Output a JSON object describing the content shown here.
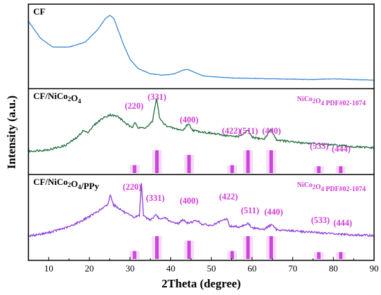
{
  "chart_data": {
    "type": "line",
    "xlabel": "2Theta (degree)",
    "ylabel": "Intensity (a.u.)",
    "xlim": [
      5,
      90
    ],
    "xticks": [
      10,
      20,
      30,
      40,
      50,
      60,
      70,
      80,
      90
    ],
    "colors": {
      "CF": "#3a86d8",
      "CF/NiCo2O4": "#1e6b3a",
      "CF/NiCo2O4/PPy": "#8a3ad8",
      "annotation": "#d23ad8",
      "reference_bar": "#cc44dd",
      "reference_halo": "#f0c2f4"
    },
    "panels": [
      {
        "title": "CF",
        "series_points": [
          [
            5,
            0.86
          ],
          [
            8,
            0.62
          ],
          [
            11,
            0.5
          ],
          [
            15,
            0.5
          ],
          [
            19,
            0.57
          ],
          [
            22,
            0.74
          ],
          [
            24,
            0.9
          ],
          [
            25,
            0.94
          ],
          [
            26,
            0.9
          ],
          [
            27,
            0.75
          ],
          [
            28.5,
            0.52
          ],
          [
            30,
            0.33
          ],
          [
            32,
            0.2
          ],
          [
            35,
            0.13
          ],
          [
            38,
            0.11
          ],
          [
            41,
            0.13
          ],
          [
            43,
            0.18
          ],
          [
            44,
            0.19
          ],
          [
            45.5,
            0.16
          ],
          [
            48,
            0.1
          ],
          [
            55,
            0.07
          ],
          [
            65,
            0.06
          ],
          [
            75,
            0.05
          ],
          [
            80,
            0.06
          ],
          [
            85,
            0.05
          ],
          [
            90,
            0.04
          ]
        ]
      },
      {
        "title": "CF/NiCo2O4",
        "reference": "NiCo2O4 PDF#02-1074",
        "series_points": [
          [
            5,
            0.04
          ],
          [
            10,
            0.07
          ],
          [
            14,
            0.14
          ],
          [
            17,
            0.28
          ],
          [
            18.5,
            0.4
          ],
          [
            19.5,
            0.36
          ],
          [
            21,
            0.48
          ],
          [
            23,
            0.6
          ],
          [
            25,
            0.67
          ],
          [
            27,
            0.64
          ],
          [
            29,
            0.52
          ],
          [
            30.5,
            0.44
          ],
          [
            31.2,
            0.56
          ],
          [
            32,
            0.44
          ],
          [
            34,
            0.45
          ],
          [
            35.5,
            0.55
          ],
          [
            36.5,
            0.96
          ],
          [
            37.3,
            0.6
          ],
          [
            38.5,
            0.5
          ],
          [
            40,
            0.45
          ],
          [
            43,
            0.4
          ],
          [
            44.3,
            0.52
          ],
          [
            45.5,
            0.4
          ],
          [
            50,
            0.35
          ],
          [
            55,
            0.3
          ],
          [
            57,
            0.3
          ],
          [
            59,
            0.4
          ],
          [
            60,
            0.28
          ],
          [
            63,
            0.25
          ],
          [
            64.6,
            0.42
          ],
          [
            66,
            0.24
          ],
          [
            70,
            0.2
          ],
          [
            76,
            0.17
          ],
          [
            80,
            0.15
          ],
          [
            85,
            0.12
          ],
          [
            90,
            0.1
          ]
        ],
        "annotations": [
          {
            "label": "(220)",
            "x": 31
          },
          {
            "label": "(331)",
            "x": 36.6
          },
          {
            "label": "(400)",
            "x": 44.5
          },
          {
            "label": "(422)",
            "x": 54.9
          },
          {
            "label": "(511)",
            "x": 59.2
          },
          {
            "label": "(440)",
            "x": 64.8
          },
          {
            "label": "(533)",
            "x": 76.5
          },
          {
            "label": "(444)",
            "x": 81.9
          }
        ],
        "reference_lines": [
          {
            "x": 31.1,
            "intensity": 0.35
          },
          {
            "x": 36.6,
            "intensity": 1.0
          },
          {
            "x": 44.5,
            "intensity": 0.8
          },
          {
            "x": 55.1,
            "intensity": 0.35
          },
          {
            "x": 59.0,
            "intensity": 1.0
          },
          {
            "x": 64.7,
            "intensity": 1.0
          },
          {
            "x": 76.4,
            "intensity": 0.3
          },
          {
            "x": 81.8,
            "intensity": 0.3
          }
        ]
      },
      {
        "title": "CF/NiCo2O4/PPy",
        "reference": "NiCo2O4 PDF#02-1074",
        "series_points": [
          [
            5,
            0.06
          ],
          [
            10,
            0.12
          ],
          [
            15,
            0.22
          ],
          [
            18,
            0.32
          ],
          [
            21,
            0.44
          ],
          [
            23.5,
            0.55
          ],
          [
            24.5,
            0.6
          ],
          [
            25.2,
            0.78
          ],
          [
            25.9,
            0.6
          ],
          [
            27,
            0.55
          ],
          [
            29,
            0.45
          ],
          [
            31,
            0.38
          ],
          [
            32.3,
            0.42
          ],
          [
            32.8,
            0.98
          ],
          [
            33.3,
            0.4
          ],
          [
            35,
            0.34
          ],
          [
            36.4,
            0.42
          ],
          [
            37.5,
            0.34
          ],
          [
            38.7,
            0.38
          ],
          [
            40,
            0.3
          ],
          [
            42,
            0.28
          ],
          [
            43,
            0.35
          ],
          [
            44,
            0.28
          ],
          [
            46.5,
            0.33
          ],
          [
            47.5,
            0.27
          ],
          [
            50,
            0.24
          ],
          [
            53.8,
            0.36
          ],
          [
            54.5,
            0.23
          ],
          [
            57,
            0.22
          ],
          [
            59,
            0.28
          ],
          [
            60,
            0.2
          ],
          [
            63,
            0.18
          ],
          [
            64.8,
            0.26
          ],
          [
            66,
            0.17
          ],
          [
            70,
            0.15
          ],
          [
            76,
            0.12
          ],
          [
            80,
            0.1
          ],
          [
            85,
            0.08
          ],
          [
            90,
            0.07
          ]
        ],
        "annotations": [
          {
            "label": "(220)",
            "x": 30.5
          },
          {
            "label": "(331)",
            "x": 36.2
          },
          {
            "label": "(400)",
            "x": 44.5
          },
          {
            "label": "(422)",
            "x": 54.2
          },
          {
            "label": "(511)",
            "x": 59.5
          },
          {
            "label": "(440)",
            "x": 65.3
          },
          {
            "label": "(533)",
            "x": 76.8
          },
          {
            "label": "(444)",
            "x": 82.3
          }
        ],
        "reference_lines": [
          {
            "x": 31.1,
            "intensity": 0.35
          },
          {
            "x": 36.6,
            "intensity": 1.0
          },
          {
            "x": 44.5,
            "intensity": 0.8
          },
          {
            "x": 55.1,
            "intensity": 0.35
          },
          {
            "x": 59.0,
            "intensity": 1.0
          },
          {
            "x": 64.7,
            "intensity": 1.0
          },
          {
            "x": 76.4,
            "intensity": 0.3
          },
          {
            "x": 81.8,
            "intensity": 0.3
          }
        ]
      }
    ]
  }
}
